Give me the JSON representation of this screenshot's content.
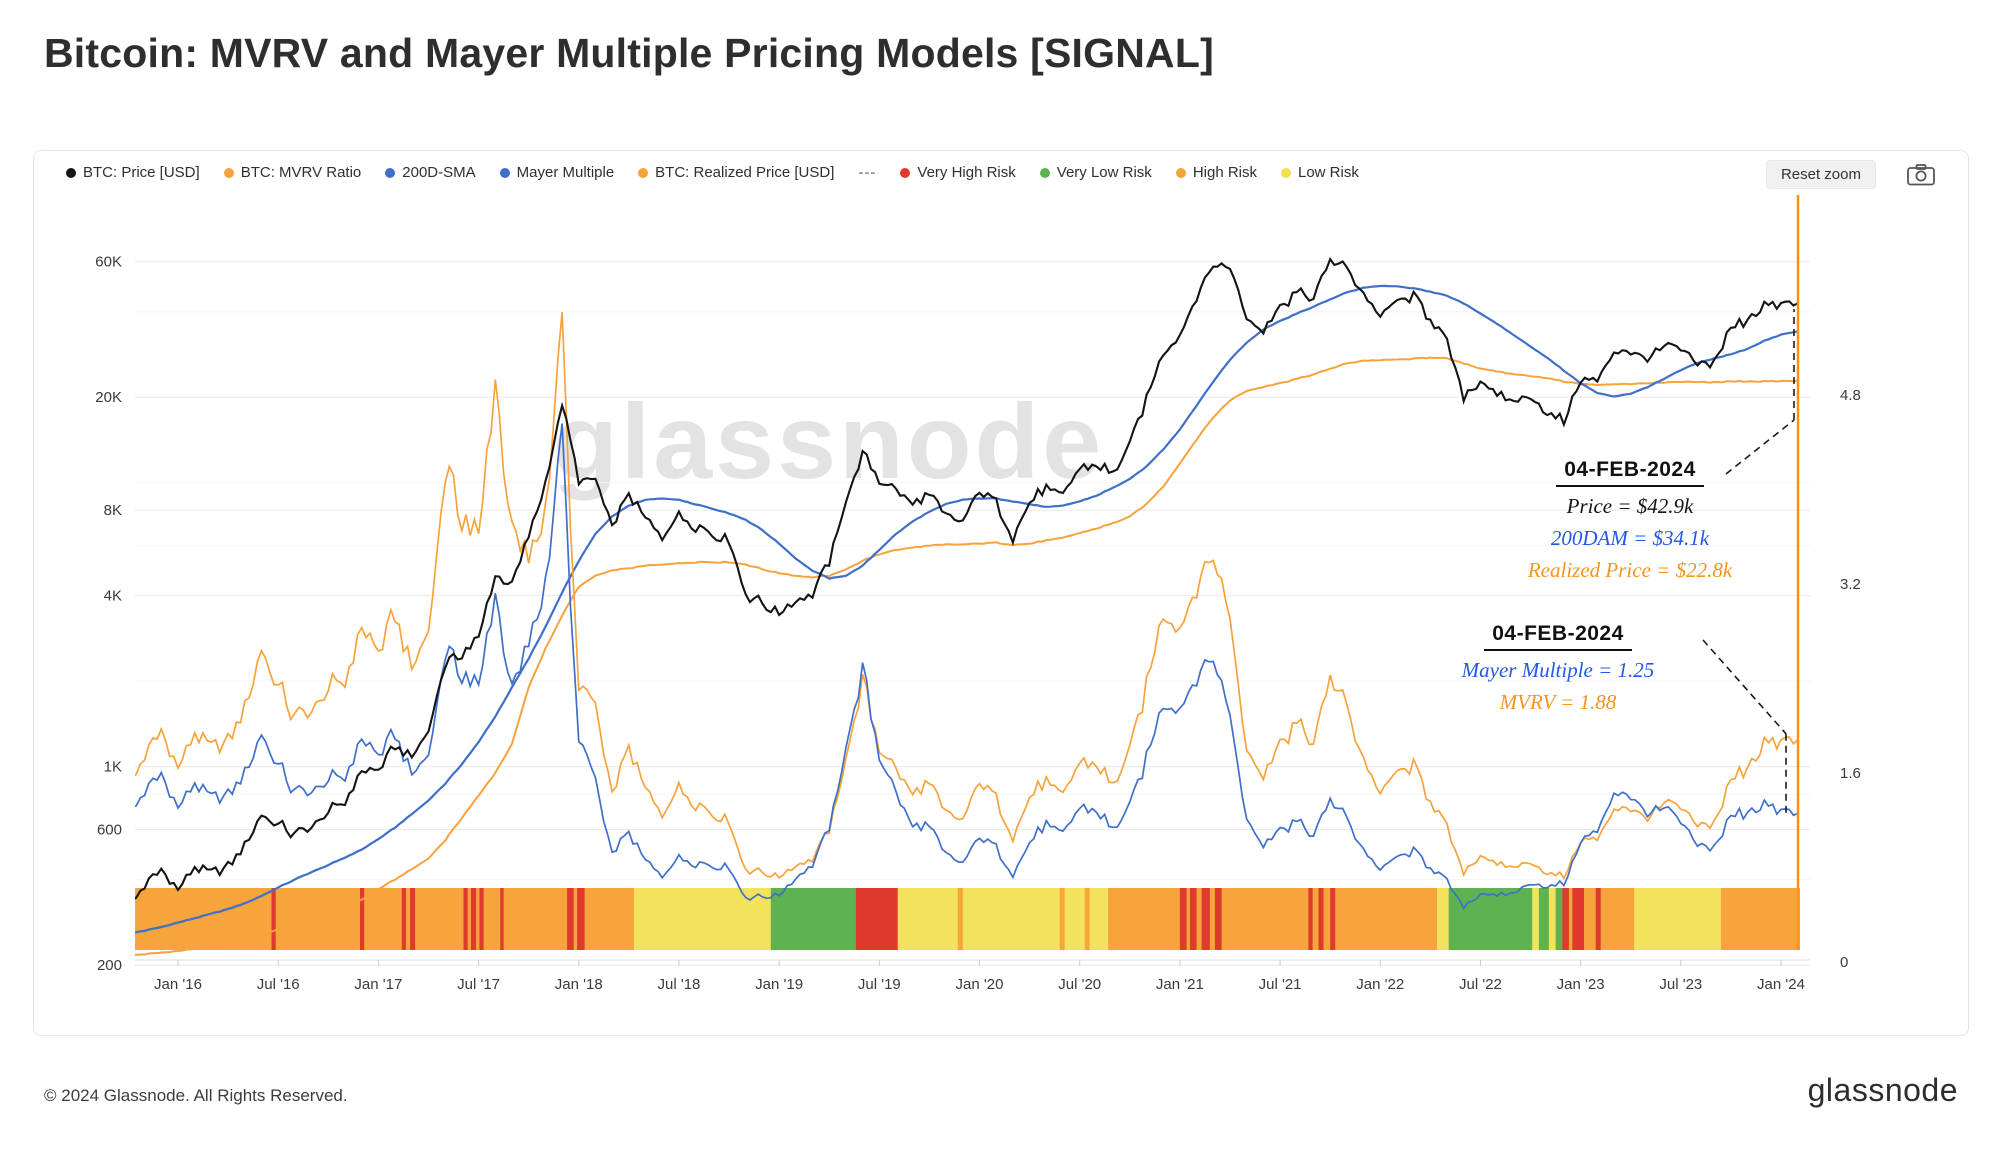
{
  "page": {
    "title": "Bitcoin: MVRV and Mayer Multiple Pricing Models [SIGNAL]",
    "footer": "© 2024 Glassnode. All Rights Reserved.",
    "brand": "glassnode"
  },
  "toolbar": {
    "reset_zoom_label": "Reset zoom"
  },
  "legend": [
    {
      "label": "BTC: Price [USD]",
      "color": "#141414",
      "marker": "dot"
    },
    {
      "label": "BTC: MVRV Ratio",
      "color": "#f8a23b",
      "marker": "dot"
    },
    {
      "label": "200D-SMA",
      "color": "#3e6fc9",
      "marker": "dot"
    },
    {
      "label": "Mayer Multiple",
      "color": "#3e6fc9",
      "marker": "dot"
    },
    {
      "label": "BTC: Realized Price [USD]",
      "color": "#f8a23b",
      "marker": "dot"
    },
    {
      "label": "---",
      "color": "#999999",
      "marker": "dash"
    },
    {
      "label": "Very High Risk",
      "color": "#e03a2f",
      "marker": "dot"
    },
    {
      "label": "Very Low Risk",
      "color": "#5eb350",
      "marker": "dot"
    },
    {
      "label": "High Risk",
      "color": "#f6a43c",
      "marker": "dot"
    },
    {
      "label": "Low Risk",
      "color": "#f0e14a",
      "marker": "dot"
    }
  ],
  "chart_data": {
    "type": "line",
    "title": "Bitcoin: MVRV and Mayer Multiple Pricing Models [SIGNAL]",
    "watermark": "glassnode",
    "legend_position": "top",
    "x_axis": {
      "interval": "monthly",
      "months_offset_before_jan16": 3,
      "tick_labels": [
        "Jan '16",
        "Jul '16",
        "Jan '17",
        "Jul '17",
        "Jan '18",
        "Jul '18",
        "Jan '19",
        "Jul '19",
        "Jan '20",
        "Jul '20",
        "Jan '21",
        "Jul '21",
        "Jan '22",
        "Jul '22",
        "Jan '23",
        "Jul '23",
        "Jan '24"
      ]
    },
    "y_axis_left": {
      "scale": "log",
      "tick_labels": [
        "60K",
        "20K",
        "8K",
        "4K",
        "1K",
        "600",
        "200"
      ],
      "tick_values": [
        60000,
        20000,
        8000,
        4000,
        1000,
        600,
        200
      ]
    },
    "y_axis_right": {
      "scale": "linear",
      "tick_labels": [
        "4.8",
        "3.2",
        "1.6",
        "0"
      ],
      "tick_values": [
        4.8,
        3.2,
        1.6,
        0
      ]
    },
    "series": [
      {
        "name": "BTC: Price [USD]",
        "color": "#141414",
        "axis": "left",
        "values": [
          314,
          377,
          430,
          368,
          437,
          416,
          448,
          531,
          673,
          624,
          573,
          609,
          700,
          745,
          963,
          970,
          1180,
          1080,
          1350,
          2300,
          2480,
          2870,
          4700,
          4340,
          6450,
          9900,
          19000,
          10200,
          10300,
          6930,
          9240,
          7490,
          6400,
          7730,
          7030,
          6620,
          6340,
          4020,
          3740,
          3460,
          3850,
          4100,
          5320,
          8560,
          12800,
          10100,
          9600,
          8290,
          9150,
          7550,
          7190,
          9350,
          8600,
          6440,
          8630,
          9450,
          9140,
          11350,
          11650,
          10780,
          13800,
          19700,
          29000,
          33100,
          45200,
          58800,
          57750,
          37300,
          35000,
          41600,
          47100,
          43800,
          61300,
          57000,
          46200,
          38500,
          43200,
          45500,
          37700,
          31800,
          19900,
          23300,
          20050,
          19400,
          20500,
          17100,
          16550,
          23100,
          23150,
          28500,
          29250,
          27200,
          30450,
          29230,
          25930,
          26960,
          34650,
          37700,
          42250,
          42550,
          42900
        ]
      },
      {
        "name": "200D-SMA",
        "color": "#3e6fc9",
        "axis": "left",
        "values": [
          258,
          264,
          272,
          282,
          292,
          303,
          315,
          330,
          350,
          375,
          400,
          425,
          450,
          478,
          510,
          555,
          610,
          680,
          760,
          870,
          1020,
          1220,
          1500,
          1900,
          2400,
          3100,
          4100,
          5300,
          6600,
          7600,
          8300,
          8700,
          8800,
          8700,
          8400,
          8100,
          7800,
          7400,
          6800,
          6100,
          5400,
          4900,
          4600,
          4700,
          5100,
          5800,
          6600,
          7300,
          7900,
          8400,
          8700,
          8800,
          8800,
          8600,
          8400,
          8200,
          8300,
          8600,
          9000,
          9600,
          10300,
          11400,
          13100,
          15400,
          18700,
          22700,
          27100,
          31100,
          34700,
          37100,
          39400,
          41600,
          44200,
          46800,
          48600,
          49300,
          49100,
          48300,
          47100,
          45500,
          42800,
          39500,
          36200,
          33100,
          30200,
          27500,
          24800,
          22400,
          20700,
          20100,
          20600,
          21700,
          23200,
          24900,
          26400,
          27400,
          28300,
          29600,
          31600,
          33200,
          34100
        ]
      },
      {
        "name": "BTC: Realized Price [USD]",
        "color": "#f8a23b",
        "axis": "left",
        "values": [
          216,
          218,
          221,
          224,
          228,
          232,
          238,
          245,
          255,
          268,
          278,
          288,
          300,
          315,
          340,
          370,
          400,
          435,
          475,
          550,
          660,
          790,
          950,
          1200,
          1900,
          2600,
          3400,
          4300,
          4700,
          4900,
          5000,
          5100,
          5150,
          5200,
          5250,
          5250,
          5250,
          5150,
          4950,
          4800,
          4700,
          4650,
          4700,
          4950,
          5300,
          5600,
          5800,
          5900,
          6000,
          6050,
          6050,
          6100,
          6150,
          6050,
          6100,
          6250,
          6400,
          6650,
          6900,
          7200,
          7600,
          8400,
          9700,
          11700,
          14200,
          17000,
          19500,
          21000,
          21800,
          22400,
          23200,
          24000,
          25200,
          26300,
          26900,
          27000,
          27100,
          27300,
          27600,
          27400,
          26300,
          25300,
          24600,
          24100,
          23800,
          23300,
          22700,
          22300,
          22100,
          22200,
          22300,
          22400,
          22500,
          22600,
          22600,
          22600,
          22700,
          22750,
          22750,
          22780,
          22800
        ]
      },
      {
        "name": "Mayer Multiple",
        "color": "#3e6fc9",
        "axis": "right",
        "derived": "price/sma",
        "end_value": 1.25
      },
      {
        "name": "BTC: MVRV Ratio",
        "color": "#f8a23b",
        "axis": "right",
        "derived": "price/realized",
        "end_value": 1.88
      }
    ],
    "risk_band": {
      "colors": {
        "very_high": "#e03a2f",
        "high": "#f6a43c",
        "low": "#f3e35c",
        "very_low": "#5eb350"
      },
      "segments": [
        [
          -3.5,
          5.6,
          "high"
        ],
        [
          5.6,
          5.85,
          "very_high"
        ],
        [
          5.85,
          10.9,
          "high"
        ],
        [
          10.9,
          11.15,
          "very_high"
        ],
        [
          11.15,
          13.4,
          "high"
        ],
        [
          13.4,
          13.65,
          "very_high"
        ],
        [
          13.65,
          13.9,
          "high"
        ],
        [
          13.9,
          14.2,
          "very_high"
        ],
        [
          14.2,
          17.1,
          "high"
        ],
        [
          17.1,
          17.35,
          "very_high"
        ],
        [
          17.35,
          17.55,
          "high"
        ],
        [
          17.55,
          17.85,
          "very_high"
        ],
        [
          17.85,
          18.05,
          "high"
        ],
        [
          18.05,
          18.3,
          "very_high"
        ],
        [
          18.3,
          19.3,
          "high"
        ],
        [
          19.3,
          19.5,
          "very_high"
        ],
        [
          19.5,
          23.3,
          "high"
        ],
        [
          23.3,
          23.7,
          "very_high"
        ],
        [
          23.7,
          23.9,
          "high"
        ],
        [
          23.9,
          24.35,
          "very_high"
        ],
        [
          24.35,
          27.3,
          "high"
        ],
        [
          27.3,
          35.5,
          "low"
        ],
        [
          35.5,
          40.6,
          "very_low"
        ],
        [
          40.6,
          43.1,
          "very_high"
        ],
        [
          43.1,
          46.7,
          "low"
        ],
        [
          46.7,
          47.0,
          "high"
        ],
        [
          47.0,
          52.8,
          "low"
        ],
        [
          52.8,
          53.1,
          "high"
        ],
        [
          53.1,
          54.3,
          "low"
        ],
        [
          54.3,
          54.6,
          "high"
        ],
        [
          54.6,
          55.7,
          "low"
        ],
        [
          55.7,
          60.0,
          "high"
        ],
        [
          60.0,
          60.4,
          "very_high"
        ],
        [
          60.4,
          60.6,
          "high"
        ],
        [
          60.6,
          61.0,
          "very_high"
        ],
        [
          61.0,
          61.3,
          "high"
        ],
        [
          61.3,
          61.8,
          "very_high"
        ],
        [
          61.8,
          62.1,
          "high"
        ],
        [
          62.1,
          62.5,
          "very_high"
        ],
        [
          62.5,
          67.7,
          "high"
        ],
        [
          67.7,
          67.95,
          "very_high"
        ],
        [
          67.95,
          68.3,
          "high"
        ],
        [
          68.3,
          68.6,
          "very_high"
        ],
        [
          68.6,
          69.0,
          "high"
        ],
        [
          69.0,
          69.3,
          "very_high"
        ],
        [
          69.3,
          75.4,
          "high"
        ],
        [
          75.4,
          76.1,
          "low"
        ],
        [
          76.1,
          81.1,
          "very_low"
        ],
        [
          81.1,
          81.5,
          "low"
        ],
        [
          81.5,
          82.1,
          "very_low"
        ],
        [
          82.1,
          82.5,
          "low"
        ],
        [
          82.5,
          82.9,
          "very_low"
        ],
        [
          82.9,
          83.3,
          "very_high"
        ],
        [
          83.3,
          83.5,
          "high"
        ],
        [
          83.5,
          84.2,
          "very_high"
        ],
        [
          84.2,
          84.9,
          "high"
        ],
        [
          84.9,
          85.2,
          "very_high"
        ],
        [
          85.2,
          87.2,
          "high"
        ],
        [
          87.2,
          92.4,
          "low"
        ],
        [
          92.4,
          97.1,
          "high"
        ]
      ]
    }
  },
  "annotations": {
    "box1": {
      "date": "04-FEB-2024",
      "lines": [
        {
          "text": "Price = $42.9k",
          "color": "#141414"
        },
        {
          "text": "200DAM = $34.1k",
          "color": "#2457e6"
        },
        {
          "text": "Realized Price = $22.8k",
          "color": "#f7941e"
        }
      ]
    },
    "box2": {
      "date": "04-FEB-2024",
      "lines": [
        {
          "text": "Mayer Multiple = 1.25",
          "color": "#2457e6"
        },
        {
          "text": "MVRV = 1.88",
          "color": "#f7941e"
        }
      ]
    }
  }
}
